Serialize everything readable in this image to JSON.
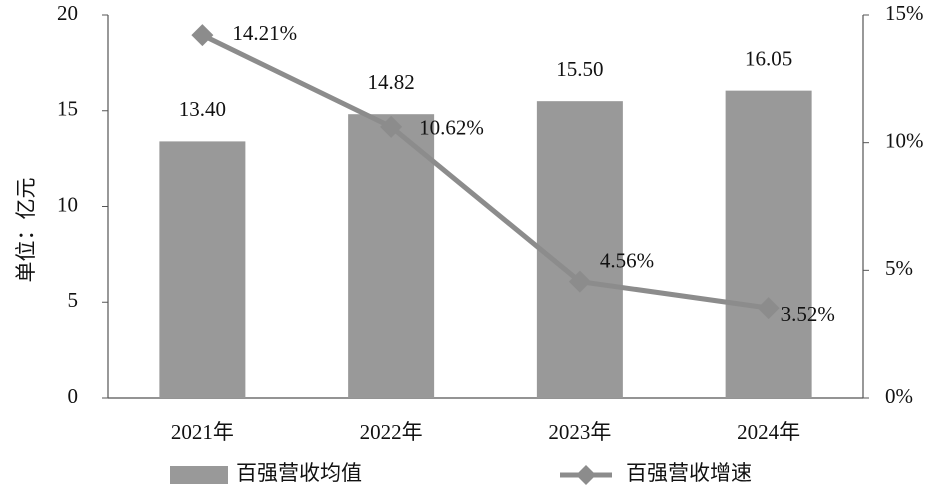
{
  "chart_data": {
    "type": "bar-line",
    "categories": [
      "2021年",
      "2022年",
      "2023年",
      "2024年"
    ],
    "ylabel": "单位：亿元",
    "series": [
      {
        "name": "百强营收均值",
        "type": "bar",
        "color": "#999999",
        "values": [
          13.4,
          14.82,
          15.5,
          16.05
        ],
        "value_labels": [
          "13.40",
          "14.82",
          "15.50",
          "16.05"
        ]
      },
      {
        "name": "百强营收增速",
        "type": "line",
        "axis": "y2",
        "color": "#8c8c8c",
        "values": [
          14.21,
          10.62,
          4.56,
          3.52
        ],
        "value_labels": [
          "14.21%",
          "10.62%",
          "4.56%",
          "3.52%"
        ]
      }
    ],
    "ylim": [
      0,
      20
    ],
    "yticks": [
      0,
      5,
      10,
      15,
      20
    ],
    "y2lim": [
      0,
      15
    ],
    "y2ticks": [
      {
        "value": 0,
        "label": "0%"
      },
      {
        "value": 5,
        "label": "5%"
      },
      {
        "value": 10,
        "label": "10%"
      },
      {
        "value": 15,
        "label": "15%"
      }
    ],
    "legend": "bottom"
  }
}
